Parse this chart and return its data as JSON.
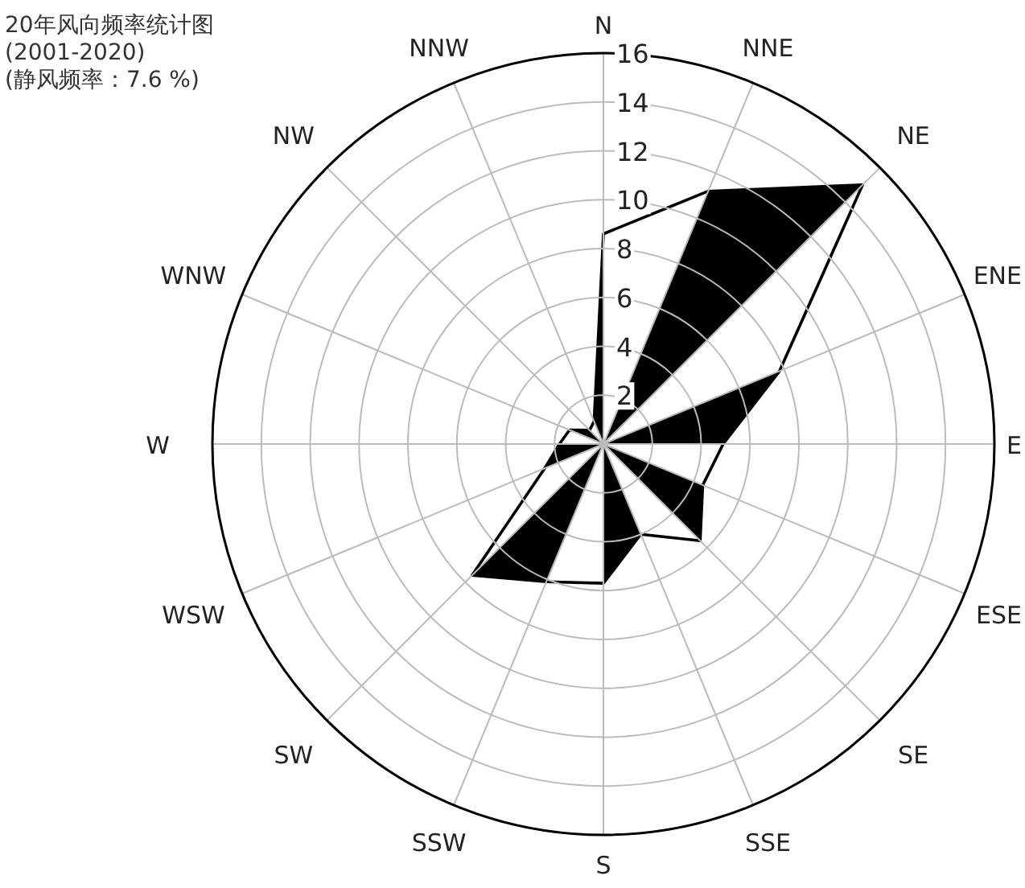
{
  "chart_data": {
    "type": "radar",
    "title": "20年风向频率统计图",
    "subtitle": "(2001-2020)",
    "annotations": [
      "(静风频率：7.6 %)"
    ],
    "categories": [
      "N",
      "NNE",
      "NE",
      "ENE",
      "E",
      "ESE",
      "SE",
      "SSE",
      "S",
      "SSW",
      "SW",
      "WSW",
      "W",
      "WNW",
      "NW",
      "NNW"
    ],
    "series": [
      {
        "color": "#000000",
        "values": [
          8.6,
          11.2,
          15.0,
          7.8,
          4.9,
          4.4,
          5.6,
          4.0,
          5.7,
          6.1,
          7.6,
          2.6,
          1.8,
          1.5,
          0.8,
          1.0
        ]
      }
    ],
    "ylim": [
      0,
      16
    ],
    "yticks": [
      2,
      4,
      6,
      8,
      10,
      12,
      14,
      16
    ],
    "grid": true
  }
}
